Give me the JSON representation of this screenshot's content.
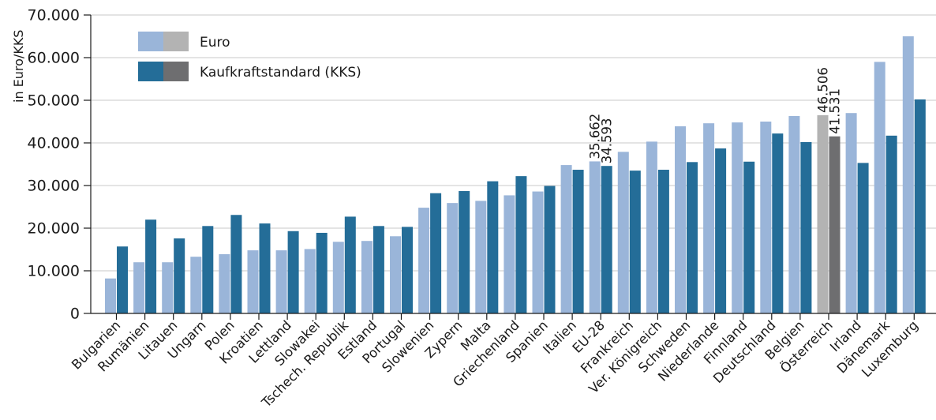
{
  "chart_data": {
    "type": "bar",
    "ylabel": "in Euro/KKS",
    "ylim": [
      0,
      70000
    ],
    "yticks": [
      0,
      10000,
      20000,
      30000,
      40000,
      50000,
      60000,
      70000
    ],
    "ytick_labels": [
      "0",
      "10.000",
      "20.000",
      "30.000",
      "40.000",
      "50.000",
      "60.000",
      "70.000"
    ],
    "grid": true,
    "legend_position": "top-left",
    "categories": [
      "Bulgarien",
      "Rumänien",
      "Litauen",
      "Ungarn",
      "Polen",
      "Kroatien",
      "Lettland",
      "Slowakei",
      "Tschech. Republik",
      "Estland",
      "Portugal",
      "Slowenien",
      "Zypern",
      "Malta",
      "Griechenland",
      "Spanien",
      "Italien",
      "EU-28",
      "Frankreich",
      "Ver. Königreich",
      "Schweden",
      "Niederlande",
      "Finnland",
      "Deutschland",
      "Belgien",
      "Österreich",
      "Irland",
      "Dänemark",
      "Luxemburg"
    ],
    "highlight_category": "Österreich",
    "series": [
      {
        "name": "Euro",
        "color": "#9ab5d9",
        "highlight_color": "#b3b3b3",
        "values": [
          8200,
          12000,
          12000,
          13300,
          13900,
          14800,
          14800,
          15100,
          16800,
          17000,
          18100,
          24800,
          25900,
          26400,
          27700,
          28600,
          34800,
          35662,
          37900,
          40300,
          43900,
          44600,
          44800,
          45000,
          46300,
          46506,
          47000,
          59000,
          65000
        ]
      },
      {
        "name": "Kaufkraftstandard (KKS)",
        "color": "#246d98",
        "highlight_color": "#6e6e70",
        "values": [
          15700,
          22000,
          17600,
          20500,
          23100,
          21100,
          19300,
          18900,
          22700,
          20500,
          20300,
          28200,
          28700,
          31000,
          32200,
          29900,
          33700,
          34593,
          33500,
          33700,
          35500,
          38700,
          35600,
          42200,
          40200,
          41531,
          35300,
          41700,
          50200
        ]
      }
    ],
    "data_labels": [
      {
        "category": "EU-28",
        "series": "Euro",
        "text": "35.662"
      },
      {
        "category": "EU-28",
        "series": "Kaufkraftstandard (KKS)",
        "text": "34.593"
      },
      {
        "category": "Österreich",
        "series": "Euro",
        "text": "46.506"
      },
      {
        "category": "Österreich",
        "series": "Kaufkraftstandard (KKS)",
        "text": "41.531"
      }
    ]
  }
}
